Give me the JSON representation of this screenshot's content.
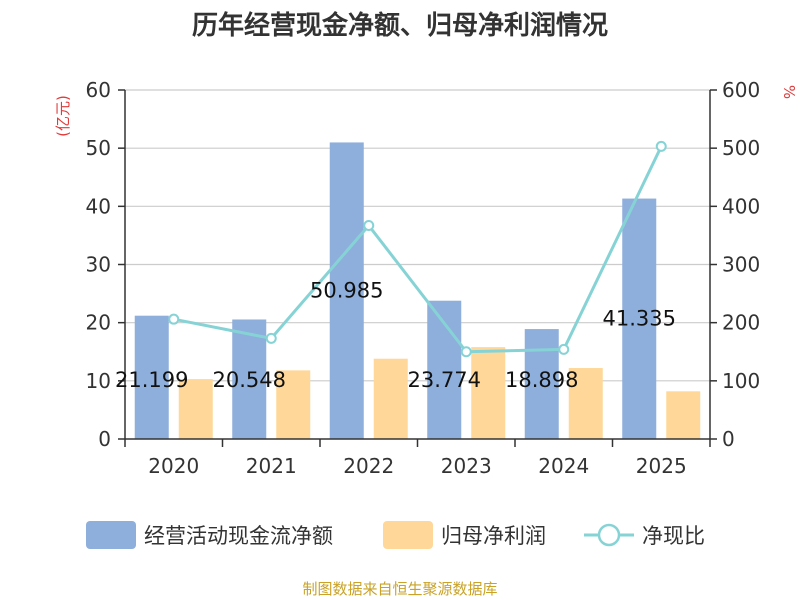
{
  "chart_data": {
    "type": "bar",
    "title": "历年经营现金净额、归母净利润情况",
    "left_unit": "(亿元)",
    "right_unit": "%",
    "categories": [
      "2020",
      "2021",
      "2022",
      "2023",
      "2024",
      "2025"
    ],
    "y_left": {
      "min": 0,
      "max": 60,
      "ticks": [
        "0",
        "10",
        "20",
        "30",
        "40",
        "50",
        "60"
      ]
    },
    "y_right": {
      "min": 0,
      "max": 600,
      "ticks": [
        "0",
        "100",
        "200",
        "300",
        "400",
        "500",
        "600"
      ]
    },
    "grid": true,
    "legend_position": "bottom",
    "series": [
      {
        "name": "经营活动现金流净额",
        "type": "bar",
        "axis": "left",
        "color": "#8eaedb",
        "values": [
          21.199,
          20.548,
          50.985,
          23.774,
          18.898,
          41.335
        ],
        "labels": [
          "21.199",
          "20.548",
          "50.985",
          "23.774",
          "18.898",
          "41.335"
        ]
      },
      {
        "name": "归母净利润",
        "type": "bar",
        "axis": "left",
        "color": "#ffd899",
        "values": [
          10.3,
          11.8,
          13.8,
          15.8,
          12.2,
          8.2
        ]
      },
      {
        "name": "净现比",
        "type": "line",
        "axis": "right",
        "color": "#86d3d6",
        "values": [
          206,
          173,
          367,
          150,
          154,
          503
        ]
      }
    ],
    "source": "制图数据来自恒生聚源数据库"
  }
}
